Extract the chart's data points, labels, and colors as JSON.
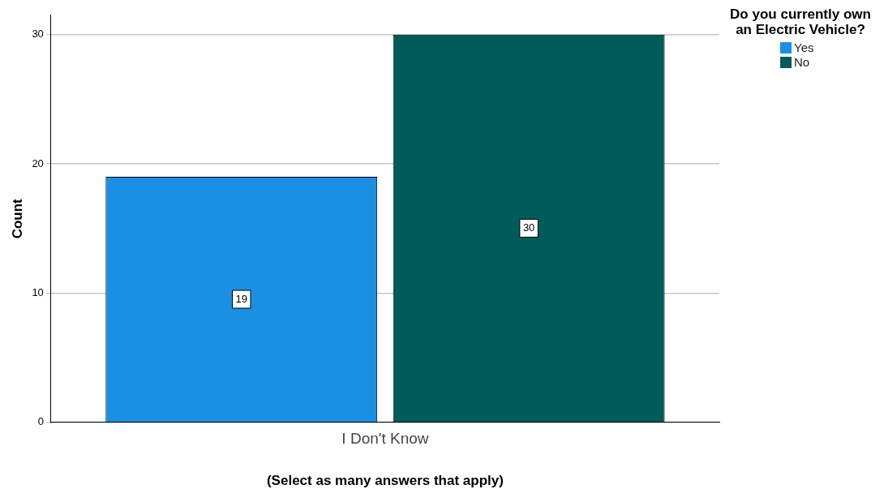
{
  "chart_data": {
    "type": "bar",
    "xlabel": "(Select as many answers that apply)",
    "ylabel": "Count",
    "legend_title": "Do you currently own an Electric Vehicle?",
    "categories": [
      "I Don't Know"
    ],
    "series": [
      {
        "name": "Yes",
        "color": "#1a8fe3",
        "values": [
          19
        ]
      },
      {
        "name": "No",
        "color": "#005b5b",
        "values": [
          30
        ]
      }
    ],
    "ylim": [
      0,
      31.5
    ],
    "yticks": [
      0,
      10,
      20,
      30
    ],
    "grid": "y",
    "legend": "top right",
    "data_labels": true
  }
}
